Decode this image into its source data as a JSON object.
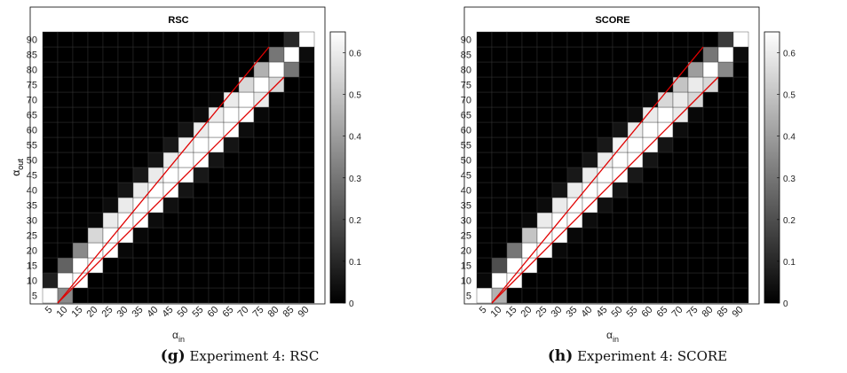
{
  "chart_data": [
    {
      "type": "heatmap",
      "title": "RSC",
      "xlabel": "α_in",
      "ylabel": "α_out",
      "x": [
        5,
        10,
        15,
        20,
        25,
        30,
        35,
        40,
        45,
        50,
        55,
        60,
        65,
        70,
        75,
        80,
        85,
        90
      ],
      "y": [
        5,
        10,
        15,
        20,
        25,
        30,
        35,
        40,
        45,
        50,
        55,
        60,
        65,
        70,
        75,
        80,
        85,
        90
      ],
      "colorbar": {
        "min": 0,
        "max": 0.65,
        "ticks": [
          0,
          0.1,
          0.2,
          0.3,
          0.4,
          0.5,
          0.6
        ]
      },
      "colormap": "gray",
      "values": [
        [
          0.65,
          0.35,
          0,
          0,
          0,
          0,
          0,
          0,
          0,
          0,
          0,
          0,
          0,
          0,
          0,
          0,
          0,
          0
        ],
        [
          0.08,
          0.65,
          0.65,
          0,
          0,
          0,
          0,
          0,
          0,
          0,
          0,
          0,
          0,
          0,
          0,
          0,
          0,
          0
        ],
        [
          0,
          0.25,
          0.65,
          0.65,
          0,
          0,
          0,
          0,
          0,
          0,
          0,
          0,
          0,
          0,
          0,
          0,
          0,
          0
        ],
        [
          0,
          0,
          0.35,
          0.65,
          0.65,
          0.02,
          0,
          0,
          0,
          0,
          0,
          0,
          0,
          0,
          0,
          0,
          0,
          0
        ],
        [
          0,
          0,
          0,
          0.55,
          0.65,
          0.65,
          0.02,
          0,
          0,
          0,
          0,
          0,
          0,
          0,
          0,
          0,
          0,
          0
        ],
        [
          0,
          0,
          0,
          0.02,
          0.6,
          0.65,
          0.65,
          0.03,
          0,
          0,
          0,
          0,
          0,
          0,
          0,
          0,
          0,
          0
        ],
        [
          0,
          0,
          0,
          0,
          0.03,
          0.6,
          0.65,
          0.65,
          0.04,
          0,
          0,
          0,
          0,
          0,
          0,
          0,
          0,
          0
        ],
        [
          0,
          0,
          0,
          0,
          0,
          0.05,
          0.6,
          0.65,
          0.65,
          0.05,
          0,
          0,
          0,
          0,
          0,
          0,
          0,
          0
        ],
        [
          0,
          0,
          0,
          0,
          0,
          0,
          0.06,
          0.6,
          0.65,
          0.65,
          0.06,
          0,
          0,
          0,
          0,
          0,
          0,
          0
        ],
        [
          0,
          0,
          0,
          0,
          0,
          0,
          0,
          0.05,
          0.6,
          0.65,
          0.65,
          0.05,
          0,
          0,
          0,
          0,
          0,
          0
        ],
        [
          0,
          0,
          0,
          0,
          0,
          0,
          0,
          0,
          0.06,
          0.62,
          0.65,
          0.65,
          0.05,
          0,
          0,
          0,
          0,
          0
        ],
        [
          0,
          0,
          0,
          0,
          0,
          0,
          0,
          0,
          0,
          0.05,
          0.6,
          0.65,
          0.65,
          0.03,
          0,
          0,
          0,
          0
        ],
        [
          0,
          0,
          0,
          0,
          0,
          0,
          0,
          0,
          0,
          0,
          0.03,
          0.6,
          0.65,
          0.65,
          0.02,
          0,
          0,
          0
        ],
        [
          0,
          0,
          0,
          0,
          0,
          0,
          0,
          0,
          0,
          0,
          0,
          0.02,
          0.6,
          0.65,
          0.6,
          0,
          0,
          0
        ],
        [
          0,
          0,
          0,
          0,
          0,
          0,
          0,
          0,
          0,
          0,
          0,
          0,
          0,
          0.55,
          0.65,
          0.55,
          0,
          0
        ],
        [
          0,
          0,
          0,
          0,
          0,
          0,
          0,
          0,
          0,
          0,
          0,
          0,
          0,
          0,
          0.45,
          0.65,
          0.3,
          0
        ],
        [
          0,
          0,
          0,
          0,
          0,
          0,
          0,
          0,
          0,
          0,
          0,
          0,
          0,
          0,
          0,
          0.3,
          0.65,
          0.03
        ],
        [
          0,
          0,
          0,
          0,
          0,
          0,
          0,
          0,
          0,
          0,
          0,
          0,
          0,
          0,
          0,
          0,
          0.1,
          0.65
        ]
      ],
      "lines": [
        {
          "x": [
            10,
            80
          ],
          "y": [
            5,
            90
          ],
          "color": "#e00000"
        },
        {
          "x": [
            10,
            85
          ],
          "y": [
            5,
            80
          ],
          "color": "#e00000"
        }
      ]
    },
    {
      "type": "heatmap",
      "title": "SCORE",
      "xlabel": "α_in",
      "ylabel": "α_out",
      "x": [
        5,
        10,
        15,
        20,
        25,
        30,
        35,
        40,
        45,
        50,
        55,
        60,
        65,
        70,
        75,
        80,
        85,
        90
      ],
      "y": [
        5,
        10,
        15,
        20,
        25,
        30,
        35,
        40,
        45,
        50,
        55,
        60,
        65,
        70,
        75,
        80,
        85,
        90
      ],
      "colorbar": {
        "min": 0,
        "max": 0.65,
        "ticks": [
          0,
          0.1,
          0.2,
          0.3,
          0.4,
          0.5,
          0.6
        ]
      },
      "colormap": "gray",
      "values": [
        [
          0.65,
          0.45,
          0,
          0,
          0,
          0,
          0,
          0,
          0,
          0,
          0,
          0,
          0,
          0,
          0,
          0,
          0,
          0
        ],
        [
          0.02,
          0.65,
          0.65,
          0,
          0,
          0,
          0,
          0,
          0,
          0,
          0,
          0,
          0,
          0,
          0,
          0,
          0,
          0
        ],
        [
          0,
          0.2,
          0.65,
          0.65,
          0,
          0,
          0,
          0,
          0,
          0,
          0,
          0,
          0,
          0,
          0,
          0,
          0,
          0
        ],
        [
          0,
          0,
          0.3,
          0.65,
          0.65,
          0.02,
          0,
          0,
          0,
          0,
          0,
          0,
          0,
          0,
          0,
          0,
          0,
          0
        ],
        [
          0,
          0,
          0,
          0.5,
          0.65,
          0.65,
          0.02,
          0,
          0,
          0,
          0,
          0,
          0,
          0,
          0,
          0,
          0,
          0
        ],
        [
          0,
          0,
          0,
          0.02,
          0.6,
          0.65,
          0.65,
          0.03,
          0,
          0,
          0,
          0,
          0,
          0,
          0,
          0,
          0,
          0
        ],
        [
          0,
          0,
          0,
          0,
          0.03,
          0.6,
          0.65,
          0.65,
          0.04,
          0,
          0,
          0,
          0,
          0,
          0,
          0,
          0,
          0
        ],
        [
          0,
          0,
          0,
          0,
          0,
          0.05,
          0.6,
          0.65,
          0.65,
          0.05,
          0,
          0,
          0,
          0,
          0,
          0,
          0,
          0
        ],
        [
          0,
          0,
          0,
          0,
          0,
          0,
          0.06,
          0.6,
          0.65,
          0.65,
          0.06,
          0,
          0,
          0,
          0,
          0,
          0,
          0
        ],
        [
          0,
          0,
          0,
          0,
          0,
          0,
          0,
          0.05,
          0.6,
          0.65,
          0.65,
          0.05,
          0,
          0,
          0,
          0,
          0,
          0
        ],
        [
          0,
          0,
          0,
          0,
          0,
          0,
          0,
          0,
          0.06,
          0.62,
          0.65,
          0.65,
          0.05,
          0,
          0,
          0,
          0,
          0
        ],
        [
          0,
          0,
          0,
          0,
          0,
          0,
          0,
          0,
          0,
          0.05,
          0.6,
          0.65,
          0.65,
          0.03,
          0,
          0,
          0,
          0
        ],
        [
          0,
          0,
          0,
          0,
          0,
          0,
          0,
          0,
          0,
          0,
          0.03,
          0.6,
          0.65,
          0.6,
          0.02,
          0,
          0,
          0
        ],
        [
          0,
          0,
          0,
          0,
          0,
          0,
          0,
          0,
          0,
          0,
          0,
          0.02,
          0.55,
          0.6,
          0.55,
          0,
          0,
          0
        ],
        [
          0,
          0,
          0,
          0,
          0,
          0,
          0,
          0,
          0,
          0,
          0,
          0,
          0,
          0.5,
          0.6,
          0.55,
          0,
          0
        ],
        [
          0,
          0,
          0,
          0,
          0,
          0,
          0,
          0,
          0,
          0,
          0,
          0,
          0,
          0,
          0.4,
          0.65,
          0.35,
          0
        ],
        [
          0,
          0,
          0,
          0,
          0,
          0,
          0,
          0,
          0,
          0,
          0,
          0,
          0,
          0,
          0,
          0.3,
          0.65,
          0.03
        ],
        [
          0,
          0,
          0,
          0,
          0,
          0,
          0,
          0,
          0,
          0,
          0,
          0,
          0,
          0,
          0,
          0,
          0.15,
          0.65
        ]
      ],
      "lines": [
        {
          "x": [
            10,
            80
          ],
          "y": [
            5,
            90
          ],
          "color": "#e00000"
        },
        {
          "x": [
            10,
            85
          ],
          "y": [
            5,
            80
          ],
          "color": "#e00000"
        }
      ]
    }
  ],
  "captions": [
    {
      "letter": "(g)",
      "text": "Experiment 4: RSC"
    },
    {
      "letter": "(h)",
      "text": "Experiment 4: SCORE"
    }
  ]
}
